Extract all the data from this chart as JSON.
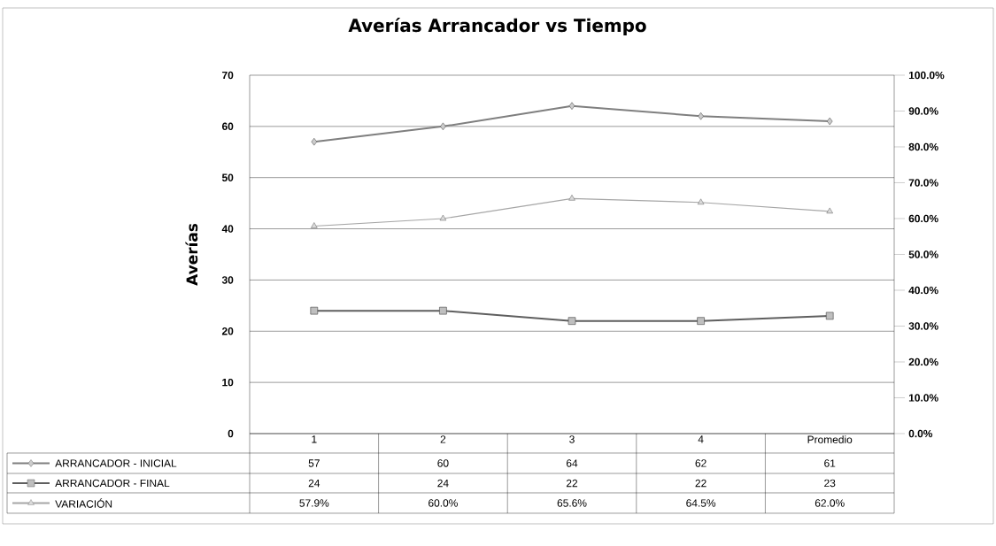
{
  "chart_data": {
    "type": "line",
    "title": "Averías Arrancador vs Tiempo",
    "ylabel": "Averías",
    "categories": [
      "1",
      "2",
      "3",
      "4",
      "Promedio"
    ],
    "ylim": [
      0,
      70
    ],
    "yticks": [
      0,
      10,
      20,
      30,
      40,
      50,
      60,
      70
    ],
    "y2lim": [
      0,
      100
    ],
    "y2ticks": [
      {
        "value": 0,
        "label": "0.0%"
      },
      {
        "value": 10,
        "label": "10.0%"
      },
      {
        "value": 20,
        "label": "20.0%"
      },
      {
        "value": 30,
        "label": "30.0%"
      },
      {
        "value": 40,
        "label": "40.0%"
      },
      {
        "value": 50,
        "label": "50.0%"
      },
      {
        "value": 60,
        "label": "60.0%"
      },
      {
        "value": 70,
        "label": "70.0%"
      },
      {
        "value": 80,
        "label": "80.0%"
      },
      {
        "value": 90,
        "label": "90.0%"
      },
      {
        "value": 100,
        "label": "100.0%"
      }
    ],
    "grid": "y",
    "legend": "bottom",
    "series": [
      {
        "name": "ARRANCADOR - INICIAL",
        "color": "#7f7f7f",
        "marker": "diamond",
        "values": [
          57,
          60,
          64,
          62,
          61
        ],
        "value_labels": [
          "57",
          "60",
          "64",
          "62",
          "61"
        ]
      },
      {
        "name": "ARRANCADOR - FINAL",
        "color": "#5f5f5f",
        "marker": "square",
        "values": [
          24,
          24,
          22,
          22,
          23
        ],
        "value_labels": [
          "24",
          "24",
          "22",
          "22",
          "23"
        ]
      },
      {
        "name": "VARIACIÓN",
        "color": "#a6a6a6",
        "marker": "triangle",
        "axis": "y2",
        "values": [
          57.9,
          60.0,
          65.6,
          64.5,
          62.0
        ],
        "value_labels": [
          "57.9%",
          "60.0%",
          "65.6%",
          "64.5%",
          "62.0%"
        ]
      }
    ]
  }
}
